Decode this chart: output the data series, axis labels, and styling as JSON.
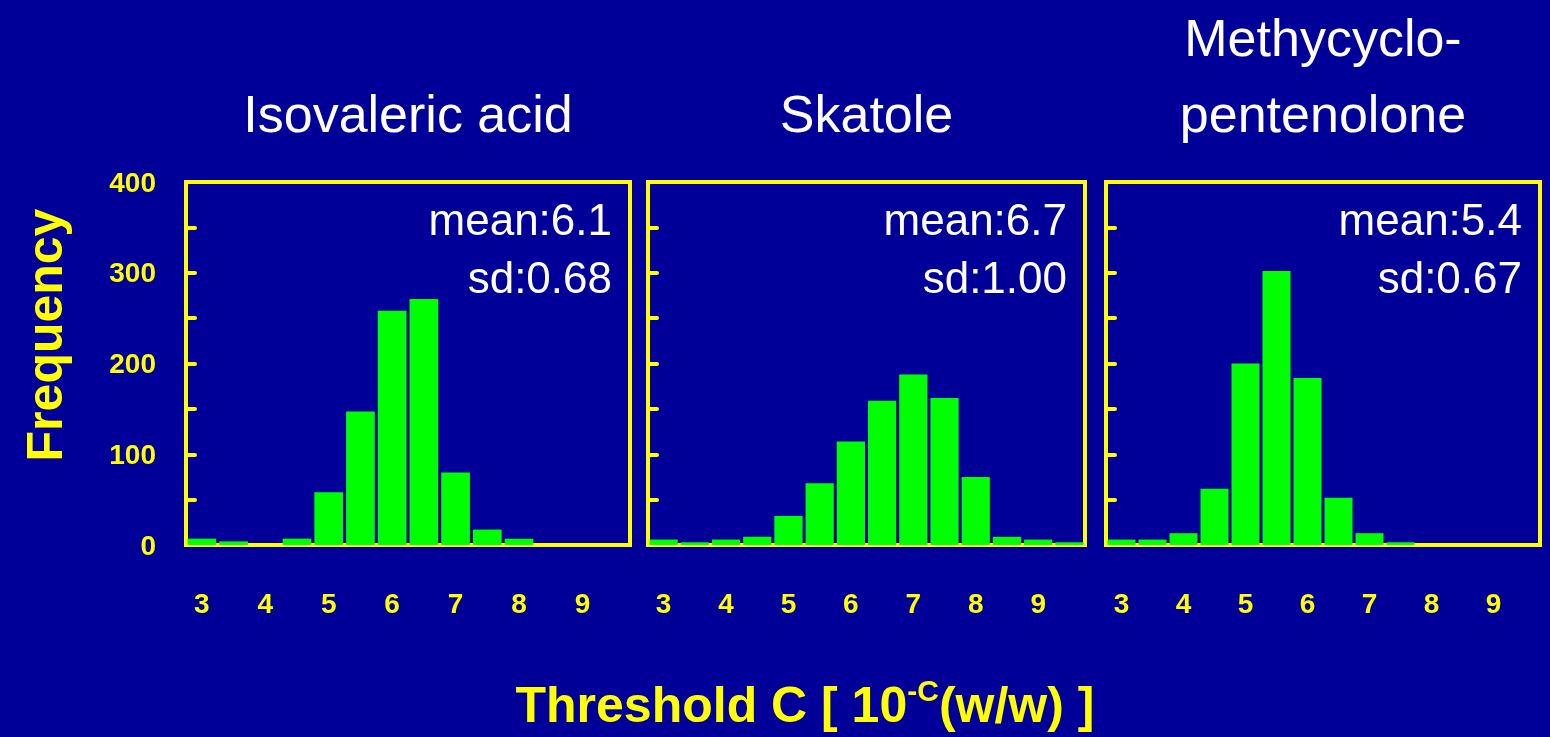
{
  "chart_data": [
    {
      "type": "histogram",
      "title": "Isovaleric acid",
      "ylabel": "Frequency",
      "annotations": [
        "mean:6.1",
        "sd:0.68"
      ],
      "bins": [
        2.75,
        3.25,
        3.75,
        4.25,
        4.75,
        5.25,
        5.75,
        6.25,
        6.75,
        7.25,
        7.75,
        8.25,
        8.75,
        9.25,
        9.75
      ],
      "values": [
        7,
        4,
        0,
        7,
        58,
        147,
        258,
        271,
        80,
        17,
        7,
        0,
        0,
        0
      ],
      "color": "#00ff00",
      "xlim": [
        2.75,
        9.75
      ],
      "xticks": [
        3,
        4,
        5,
        6,
        7,
        8,
        9
      ],
      "ylim": [
        0,
        400
      ],
      "yticks": [
        0,
        {
          "value": 50,
          "label": null
        },
        100,
        {
          "value": 150,
          "label": null
        },
        200,
        {
          "value": 250,
          "label": null
        },
        300,
        {
          "value": 350,
          "label": null
        },
        400
      ]
    },
    {
      "type": "histogram",
      "title": "Skatole",
      "xlabel": "Threshold C [ 10$^{-C}$(w/w) ]",
      "annotations": [
        "mean:6.7",
        "sd:1.00"
      ],
      "bins": [
        2.75,
        3.25,
        3.75,
        4.25,
        4.75,
        5.25,
        5.75,
        6.25,
        6.75,
        7.25,
        7.75,
        8.25,
        8.75,
        9.25,
        9.75
      ],
      "values": [
        6,
        3,
        6,
        9,
        32,
        68,
        114,
        159,
        188,
        162,
        75,
        9,
        6,
        3
      ],
      "color": "#00ff00",
      "xlim": [
        2.75,
        9.75
      ],
      "xticks": [
        3,
        4,
        5,
        6,
        7,
        8,
        9
      ],
      "ylim": [
        0,
        400
      ],
      "tick_labels": "x",
      "yticks": [
        {
          "value": 0,
          "label": null
        },
        {
          "value": 50,
          "label": null
        },
        {
          "value": 100,
          "label": null
        },
        {
          "value": 150,
          "label": null
        },
        {
          "value": 200,
          "label": null
        },
        {
          "value": 250,
          "label": null
        },
        {
          "value": 300,
          "label": null
        },
        {
          "value": 350,
          "label": null
        },
        {
          "value": 400,
          "label": null
        }
      ]
    },
    {
      "type": "histogram",
      "title": "Methycyclo-\npentenolone",
      "annotations": [
        "mean:5.4",
        "sd:0.67"
      ],
      "bins": [
        2.75,
        3.25,
        3.75,
        4.25,
        4.75,
        5.25,
        5.75,
        6.25,
        6.75,
        7.25,
        7.75,
        8.25,
        8.75,
        9.25,
        9.75
      ],
      "values": [
        6,
        6,
        13,
        62,
        200,
        302,
        184,
        52,
        13,
        3,
        0,
        0,
        0,
        0
      ],
      "color": "#00ff00",
      "xlim": [
        2.75,
        9.75
      ],
      "xticks": [
        3,
        4,
        5,
        6,
        7,
        8,
        9
      ],
      "ylim": [
        0,
        400
      ],
      "tick_labels": "x",
      "yticks": [
        {
          "value": 0,
          "label": null
        },
        {
          "value": 50,
          "label": null
        },
        {
          "value": 100,
          "label": null
        },
        {
          "value": 150,
          "label": null
        },
        {
          "value": 200,
          "label": null
        },
        {
          "value": 250,
          "label": null
        },
        {
          "value": 300,
          "label": null
        },
        {
          "value": 350,
          "label": null
        },
        {
          "value": 400,
          "label": null
        }
      ]
    }
  ]
}
